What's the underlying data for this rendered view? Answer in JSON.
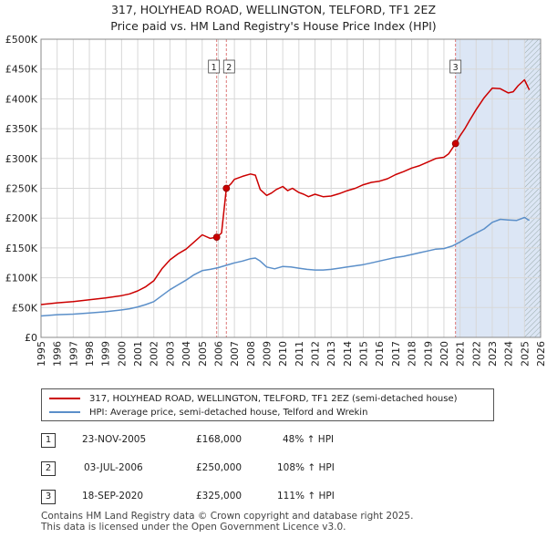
{
  "header": {
    "title": "317, HOLYHEAD ROAD, WELLINGTON, TELFORD, TF1 2EZ",
    "subtitle": "Price paid vs. HM Land Registry's House Price Index (HPI)"
  },
  "colors": {
    "property": "#cc0000",
    "hpi": "#5b8fc9",
    "shade": "#dce6f5",
    "grid": "#d8d8d8",
    "marker_line": "#dd7777"
  },
  "legend": {
    "property_label": "317, HOLYHEAD ROAD, WELLINGTON, TELFORD, TF1 2EZ (semi-detached house)",
    "hpi_label": "HPI: Average price, semi-detached house, Telford and Wrekin"
  },
  "sales": [
    {
      "num": "1",
      "date": "23-NOV-2005",
      "price": "£168,000",
      "hpi_change": "48% ↑ HPI"
    },
    {
      "num": "2",
      "date": "03-JUL-2006",
      "price": "£250,000",
      "hpi_change": "108% ↑ HPI"
    },
    {
      "num": "3",
      "date": "18-SEP-2020",
      "price": "£325,000",
      "hpi_change": "111% ↑ HPI"
    }
  ],
  "footer": {
    "line1": "Contains HM Land Registry data © Crown copyright and database right 2025.",
    "line2": "This data is licensed under the Open Government Licence v3.0."
  },
  "chart_data": {
    "type": "line",
    "title": "317, HOLYHEAD ROAD, WELLINGTON, TELFORD, TF1 2EZ",
    "subtitle": "Price paid vs. HM Land Registry's House Price Index (HPI)",
    "xlabel": "",
    "ylabel": "",
    "xlim": [
      1995,
      2026
    ],
    "ylim": [
      0,
      500000
    ],
    "x_ticks": [
      "1995",
      "1996",
      "1997",
      "1998",
      "1999",
      "2000",
      "2001",
      "2002",
      "2003",
      "2004",
      "2005",
      "2006",
      "2007",
      "2008",
      "2009",
      "2010",
      "2011",
      "2012",
      "2013",
      "2014",
      "2015",
      "2016",
      "2017",
      "2018",
      "2019",
      "2020",
      "2021",
      "2022",
      "2023",
      "2024",
      "2025",
      "2026"
    ],
    "y_ticks": [
      {
        "value": 0,
        "label": "£0"
      },
      {
        "value": 50000,
        "label": "£50K"
      },
      {
        "value": 100000,
        "label": "£100K"
      },
      {
        "value": 150000,
        "label": "£150K"
      },
      {
        "value": 200000,
        "label": "£200K"
      },
      {
        "value": 250000,
        "label": "£250K"
      },
      {
        "value": 300000,
        "label": "£300K"
      },
      {
        "value": 350000,
        "label": "£350K"
      },
      {
        "value": 400000,
        "label": "£400K"
      },
      {
        "value": 450000,
        "label": "£450K"
      },
      {
        "value": 500000,
        "label": "£500K"
      }
    ],
    "grid": true,
    "legend_position": "below",
    "shaded_regions": [
      [
        2020.72,
        2026
      ]
    ],
    "hatched_regions": [
      [
        2025.0,
        2026
      ]
    ],
    "markers": [
      {
        "label": "1",
        "x": 2005.9,
        "price": 168000
      },
      {
        "label": "2",
        "x": 2006.5,
        "price": 250000
      },
      {
        "label": "3",
        "x": 2020.72,
        "price": 325000
      }
    ],
    "series": [
      {
        "name": "317, HOLYHEAD ROAD, WELLINGTON, TELFORD, TF1 2EZ (semi-detached house)",
        "x": [
          1995,
          1996,
          1997,
          1998,
          1999,
          2000,
          2000.5,
          2001,
          2001.5,
          2002,
          2002.5,
          2003,
          2003.5,
          2004,
          2004.5,
          2005,
          2005.5,
          2005.9,
          2006.2,
          2006.5,
          2006.8,
          2007,
          2007.5,
          2008,
          2008.3,
          2008.6,
          2009,
          2009.3,
          2009.6,
          2010,
          2010.3,
          2010.6,
          2011,
          2011.3,
          2011.6,
          2012,
          2012.5,
          2013,
          2013.5,
          2014,
          2014.5,
          2015,
          2015.5,
          2016,
          2016.5,
          2017,
          2017.5,
          2018,
          2018.5,
          2019,
          2019.5,
          2020,
          2020.3,
          2020.72,
          2021,
          2021.3,
          2021.6,
          2022,
          2022.5,
          2023,
          2023.5,
          2024,
          2024.3,
          2024.6,
          2025,
          2025.3
        ],
        "values": [
          55000,
          58000,
          60000,
          63000,
          66000,
          70000,
          73000,
          78000,
          85000,
          95000,
          115000,
          130000,
          140000,
          148000,
          160000,
          172000,
          166000,
          168000,
          175000,
          250000,
          258000,
          265000,
          270000,
          274000,
          272000,
          248000,
          238000,
          242000,
          248000,
          253000,
          246000,
          250000,
          243000,
          240000,
          236000,
          240000,
          236000,
          237000,
          241000,
          246000,
          250000,
          256000,
          260000,
          262000,
          266000,
          273000,
          278000,
          284000,
          288000,
          294000,
          300000,
          302000,
          308000,
          325000,
          338000,
          350000,
          364000,
          382000,
          402000,
          418000,
          417000,
          410000,
          412000,
          422000,
          432000,
          415000
        ]
      },
      {
        "name": "HPI: Average price, semi-detached house, Telford and Wrekin",
        "x": [
          1995,
          1996,
          1997,
          1998,
          1999,
          2000,
          2000.5,
          2001,
          2001.5,
          2002,
          2002.5,
          2003,
          2003.5,
          2004,
          2004.5,
          2005,
          2005.5,
          2006,
          2006.5,
          2007,
          2007.5,
          2008,
          2008.3,
          2008.6,
          2009,
          2009.5,
          2010,
          2010.5,
          2011,
          2011.5,
          2012,
          2012.5,
          2013,
          2013.5,
          2014,
          2014.5,
          2015,
          2015.5,
          2016,
          2016.5,
          2017,
          2017.5,
          2018,
          2018.5,
          2019,
          2019.5,
          2020,
          2020.5,
          2021,
          2021.5,
          2022,
          2022.5,
          2023,
          2023.5,
          2024,
          2024.5,
          2025,
          2025.3
        ],
        "values": [
          36000,
          38000,
          39000,
          41000,
          43000,
          46000,
          48000,
          51000,
          55000,
          60000,
          70000,
          80000,
          88000,
          96000,
          105000,
          112000,
          114000,
          117000,
          121000,
          125000,
          128000,
          132000,
          133000,
          128000,
          118000,
          115000,
          119000,
          118000,
          116000,
          114000,
          113000,
          113000,
          114000,
          116000,
          118000,
          120000,
          122000,
          125000,
          128000,
          131000,
          134000,
          136000,
          139000,
          142000,
          145000,
          148000,
          149000,
          153000,
          160000,
          168000,
          175000,
          182000,
          193000,
          198000,
          197000,
          196000,
          201000,
          196000
        ]
      }
    ]
  }
}
